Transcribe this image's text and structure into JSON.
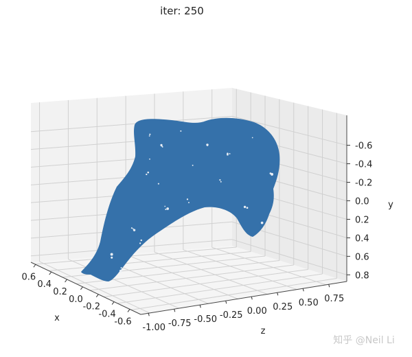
{
  "chart_data": {
    "type": "scatter",
    "projection": "3d",
    "title": "iter: 250",
    "xlabel": "x",
    "ylabel": "y",
    "zlabel": "z",
    "x_ticks": [
      "0.6",
      "0.4",
      "0.2",
      "0.0",
      "-0.2",
      "-0.4",
      "-0.6"
    ],
    "y_ticks": [
      "-0.6",
      "-0.4",
      "-0.2",
      "0.0",
      "0.2",
      "0.4",
      "0.6",
      "0.8"
    ],
    "z_ticks": [
      "-1.00",
      "-0.75",
      "-0.50",
      "-0.25",
      "0.00",
      "0.25",
      "0.50",
      "0.75"
    ],
    "xlim": [
      0.6,
      -0.6
    ],
    "ylim": [
      -0.6,
      0.8
    ],
    "zlim": [
      -1.0,
      0.75
    ],
    "grid": true,
    "point_color": "#3571aa"
  },
  "watermark": "知乎 @Neil Li"
}
